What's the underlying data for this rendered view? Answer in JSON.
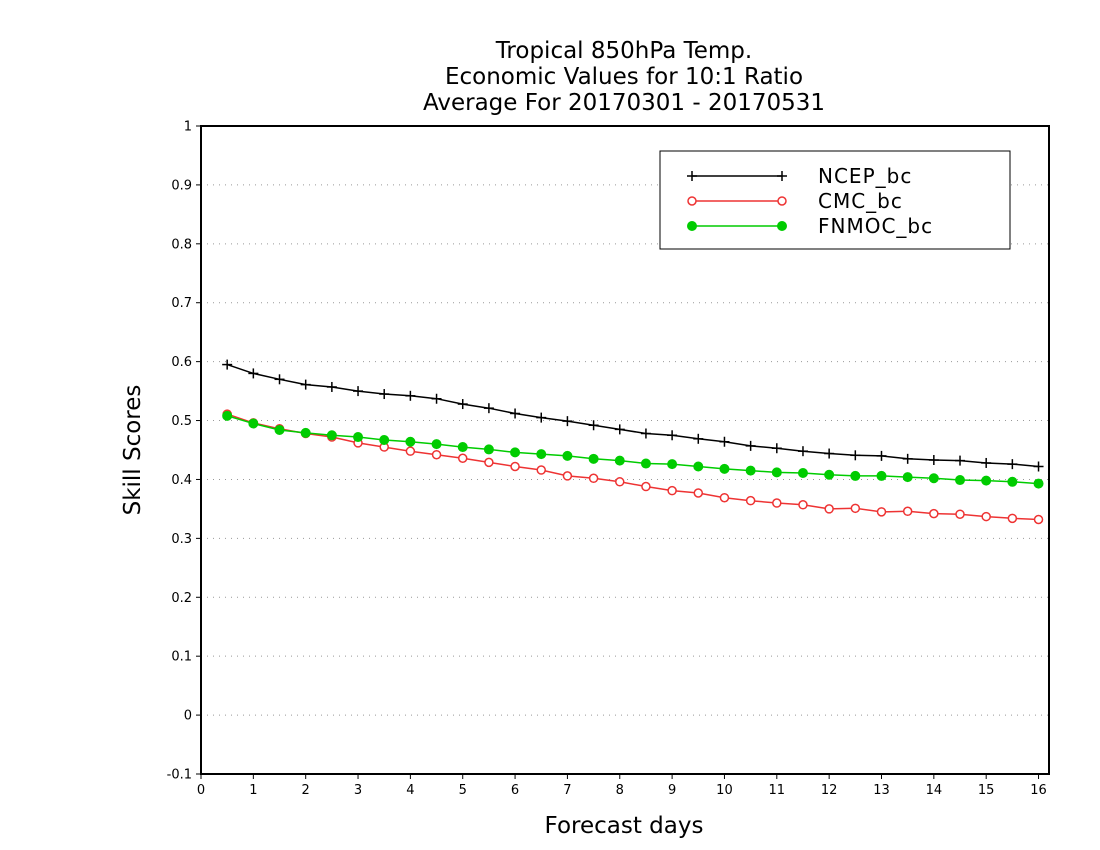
{
  "chart_data": {
    "type": "line",
    "title_lines": [
      "Tropical 850hPa Temp.",
      "Economic Values for 10:1 Ratio",
      "Average For 20170301 - 20170531"
    ],
    "xlabel": "Forecast days",
    "ylabel": "Skill Scores",
    "xlim": [
      0,
      16.2
    ],
    "ylim": [
      -0.1,
      1
    ],
    "x_ticks": [
      0,
      1,
      2,
      3,
      4,
      5,
      6,
      7,
      8,
      9,
      10,
      11,
      12,
      13,
      14,
      15,
      16
    ],
    "y_ticks": [
      -0.1,
      0,
      0.1,
      0.2,
      0.3,
      0.4,
      0.5,
      0.6,
      0.7,
      0.8,
      0.9,
      1
    ],
    "y_tick_labels": [
      "-0.1",
      "0",
      "0.1",
      "0.2",
      "0.3",
      "0.4",
      "0.5",
      "0.6",
      "0.7",
      "0.8",
      "0.9",
      "1"
    ],
    "grid": "horizontal dotted",
    "legend_position": "top-right",
    "x": [
      0.5,
      1,
      1.5,
      2,
      2.5,
      3,
      3.5,
      4,
      4.5,
      5,
      5.5,
      6,
      6.5,
      7,
      7.5,
      8,
      8.5,
      9,
      9.5,
      10,
      10.5,
      11,
      11.5,
      12,
      12.5,
      13,
      13.5,
      14,
      14.5,
      15,
      15.5,
      16
    ],
    "series": [
      {
        "name": "NCEP_bc",
        "color": "#000000",
        "marker": "plus",
        "values": [
          0.595,
          0.58,
          0.57,
          0.561,
          0.557,
          0.55,
          0.545,
          0.542,
          0.537,
          0.528,
          0.521,
          0.512,
          0.505,
          0.499,
          0.492,
          0.485,
          0.478,
          0.475,
          0.469,
          0.464,
          0.457,
          0.453,
          0.448,
          0.444,
          0.441,
          0.44,
          0.435,
          0.433,
          0.432,
          0.428,
          0.426,
          0.422
        ]
      },
      {
        "name": "CMC_bc",
        "color": "#ee3333",
        "marker": "open-circle",
        "values": [
          0.511,
          0.496,
          0.486,
          0.478,
          0.472,
          0.462,
          0.455,
          0.448,
          0.442,
          0.436,
          0.429,
          0.422,
          0.416,
          0.406,
          0.402,
          0.396,
          0.388,
          0.381,
          0.377,
          0.369,
          0.364,
          0.36,
          0.357,
          0.35,
          0.351,
          0.345,
          0.346,
          0.342,
          0.341,
          0.337,
          0.334,
          0.332
        ]
      },
      {
        "name": "FNMOC_bc",
        "color": "#00cc00",
        "marker": "filled-circle",
        "values": [
          0.508,
          0.495,
          0.484,
          0.479,
          0.475,
          0.472,
          0.467,
          0.464,
          0.46,
          0.455,
          0.451,
          0.446,
          0.443,
          0.44,
          0.435,
          0.432,
          0.427,
          0.426,
          0.422,
          0.418,
          0.415,
          0.412,
          0.411,
          0.408,
          0.406,
          0.406,
          0.404,
          0.402,
          0.399,
          0.398,
          0.396,
          0.393
        ]
      }
    ]
  }
}
